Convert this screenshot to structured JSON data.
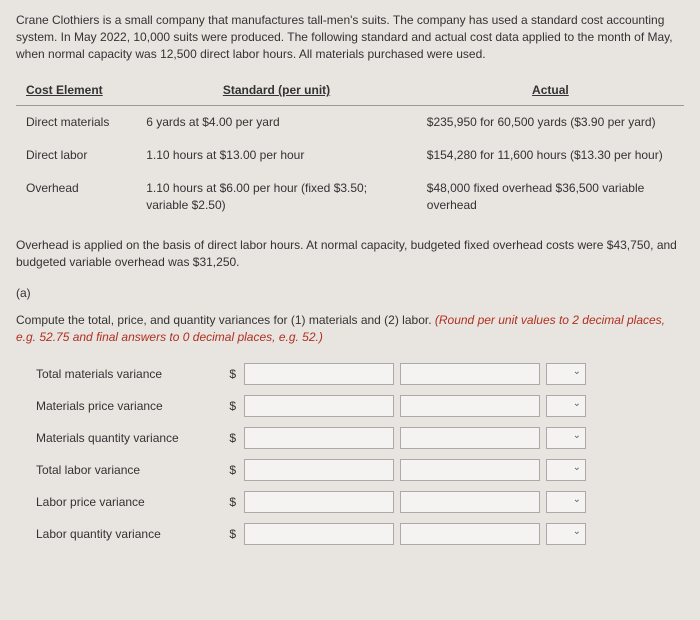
{
  "intro": "Crane Clothiers is a small company that manufactures tall-men's suits. The company has used a standard cost accounting system. In May 2022, 10,000 suits were produced. The following standard and actual cost data applied to the month of May, when normal capacity was 12,500 direct labor hours. All materials purchased were used.",
  "table": {
    "headers": {
      "col1": "Cost Element",
      "col2": "Standard (per unit)",
      "col3": "Actual"
    },
    "rows": [
      {
        "element": "Direct materials",
        "standard": "6 yards at $4.00 per yard",
        "actual": "$235,950 for 60,500 yards ($3.90 per yard)"
      },
      {
        "element": "Direct labor",
        "standard": "1.10 hours at $13.00 per hour",
        "actual": "$154,280 for 11,600 hours ($13.30 per hour)"
      },
      {
        "element": "Overhead",
        "standard": "1.10 hours at $6.00 per hour (fixed $3.50; variable $2.50)",
        "actual": "$48,000 fixed overhead $36,500 variable overhead"
      }
    ]
  },
  "overheadNote": "Overhead is applied on the basis of direct labor hours. At normal capacity, budgeted fixed overhead costs were $43,750, and budgeted variable overhead was $31,250.",
  "partLabel": "(a)",
  "computePrompt": {
    "black": "Compute the total, price, and quantity variances for (1) materials and (2) labor. ",
    "red": "(Round per unit values to 2 decimal places, e.g. 52.75 and final answers to 0 decimal places, e.g. 52.)"
  },
  "variances": [
    "Total materials variance",
    "Materials price variance",
    "Materials quantity variance",
    "Total labor variance",
    "Labor price variance",
    "Labor quantity variance"
  ],
  "dollarSign": "$"
}
